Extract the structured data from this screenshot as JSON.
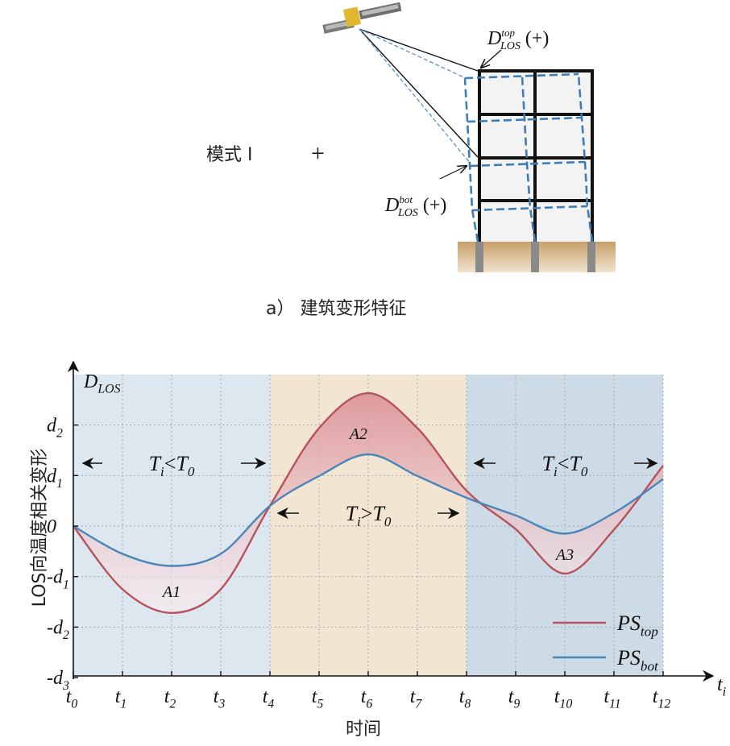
{
  "top": {
    "mode_label": "模式 I",
    "plus_sign": "+",
    "caption": "a） 建筑变形特征",
    "d_top": {
      "base": "D",
      "sup": "top",
      "sub": "LOS",
      "sign": "(+)"
    },
    "d_bot": {
      "base": "D",
      "sup": "bot",
      "sub": "LOS",
      "sign": "(+)"
    }
  },
  "chart_data": {
    "type": "line",
    "ylabel": "LOS向温度相关变形",
    "xlabel": "时间",
    "y_axis_title": {
      "base": "D",
      "sub": "LOS"
    },
    "x_axis_end": {
      "base": "t",
      "sub": "i"
    },
    "x_ticks": [
      {
        "base": "t",
        "sub": "0"
      },
      {
        "base": "t",
        "sub": "1"
      },
      {
        "base": "t",
        "sub": "2"
      },
      {
        "base": "t",
        "sub": "3"
      },
      {
        "base": "t",
        "sub": "4"
      },
      {
        "base": "t",
        "sub": "5"
      },
      {
        "base": "t",
        "sub": "6"
      },
      {
        "base": "t",
        "sub": "7"
      },
      {
        "base": "t",
        "sub": "8"
      },
      {
        "base": "t",
        "sub": "9"
      },
      {
        "base": "t",
        "sub": "10"
      },
      {
        "base": "t",
        "sub": "11"
      },
      {
        "base": "t",
        "sub": "12"
      }
    ],
    "y_ticks": [
      {
        "prefix": "",
        "base": "d",
        "sub": "2"
      },
      {
        "prefix": "",
        "base": "d",
        "sub": "1"
      },
      {
        "prefix": "",
        "base": "0",
        "sub": ""
      },
      {
        "prefix": "-",
        "base": "d",
        "sub": "1"
      },
      {
        "prefix": "-",
        "base": "d",
        "sub": "2"
      },
      {
        "prefix": "-",
        "base": "d",
        "sub": "3"
      }
    ],
    "ylim": [
      -3,
      3
    ],
    "y_tick_values": [
      2,
      1,
      0,
      -1,
      -2,
      -3
    ],
    "x": [
      0,
      1,
      2,
      3,
      4,
      5,
      6,
      7,
      8,
      9,
      10,
      11,
      12
    ],
    "series": [
      {
        "name": "PS_top",
        "label_base": "PS",
        "label_sub": "top",
        "color": "#b7525c",
        "values": [
          0,
          -1.25,
          -1.72,
          -1.25,
          0.4,
          1.94,
          2.63,
          1.94,
          0.7,
          -0.06,
          -0.94,
          -0.07,
          1.2
        ]
      },
      {
        "name": "PS_bot",
        "label_base": "PS",
        "label_sub": "bot",
        "color": "#4a86b8",
        "values": [
          0,
          -0.55,
          -0.79,
          -0.55,
          0.4,
          0.99,
          1.42,
          0.99,
          0.56,
          0.21,
          -0.15,
          0.26,
          0.93
        ]
      }
    ],
    "regions": [
      {
        "from": 0,
        "to": 4,
        "color": "#dde7f0",
        "label": {
          "base": "T",
          "sub": "i",
          "op": "<",
          "base2": "T",
          "sub2": "0"
        }
      },
      {
        "from": 4,
        "to": 8,
        "color": "#f2e6d2",
        "label": {
          "base": "T",
          "sub": "i",
          "op": ">",
          "base2": "T",
          "sub2": "0"
        }
      },
      {
        "from": 8,
        "to": 12,
        "color": "#cddbe6",
        "label": {
          "base": "T",
          "sub": "i",
          "op": "<",
          "base2": "T",
          "sub2": "0"
        }
      }
    ],
    "area_labels": [
      "A1",
      "A2",
      "A3"
    ],
    "legend_position": "bottom-right",
    "grid": true
  }
}
